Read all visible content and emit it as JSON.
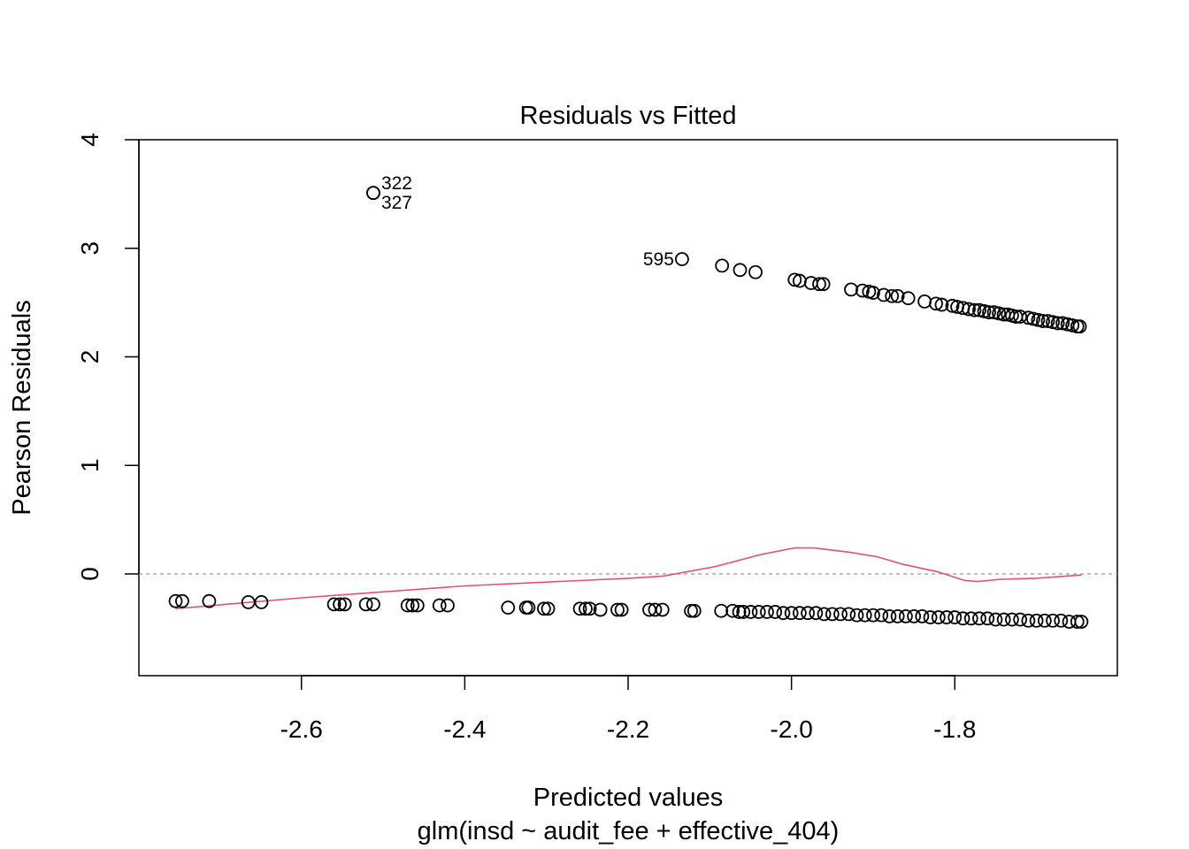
{
  "chart_data": {
    "type": "scatter",
    "title": "Residuals vs Fitted",
    "xlabel": "Predicted values",
    "sub": "glm(insd ~ audit_fee + effective_404)",
    "ylabel": "Pearson Residuals",
    "xlim": [
      -2.799,
      -1.601
    ],
    "ylim": [
      -0.937,
      4.0
    ],
    "xticks": [
      -2.6,
      -2.4,
      -2.2,
      -2.0,
      -1.8
    ],
    "xtick_labels": [
      "-2.6",
      "-2.4",
      "-2.2",
      "-2.0",
      "-1.8"
    ],
    "yticks": [
      0,
      1,
      2,
      3,
      4
    ],
    "ytick_labels": [
      "0",
      "1",
      "2",
      "3",
      "4"
    ],
    "reference_line_y": 0,
    "colors": {
      "points": "#000000",
      "smooth": "#DF536B",
      "refline": "#AAAAAA"
    },
    "points": [
      [
        -2.512,
        3.51
      ],
      [
        -2.512,
        3.51
      ],
      [
        -2.134,
        2.9
      ],
      [
        -2.085,
        2.84
      ],
      [
        -2.063,
        2.8
      ],
      [
        -2.044,
        2.78
      ],
      [
        -1.996,
        2.71
      ],
      [
        -1.99,
        2.7
      ],
      [
        -1.976,
        2.68
      ],
      [
        -1.966,
        2.67
      ],
      [
        -1.961,
        2.67
      ],
      [
        -1.927,
        2.62
      ],
      [
        -1.913,
        2.61
      ],
      [
        -1.905,
        2.6
      ],
      [
        -1.9,
        2.59
      ],
      [
        -1.887,
        2.57
      ],
      [
        -1.877,
        2.56
      ],
      [
        -1.87,
        2.56
      ],
      [
        -1.857,
        2.54
      ],
      [
        -1.837,
        2.51
      ],
      [
        -1.823,
        2.49
      ],
      [
        -1.816,
        2.48
      ],
      [
        -1.803,
        2.47
      ],
      [
        -1.797,
        2.46
      ],
      [
        -1.79,
        2.45
      ],
      [
        -1.783,
        2.44
      ],
      [
        -1.776,
        2.43
      ],
      [
        -1.77,
        2.43
      ],
      [
        -1.764,
        2.42
      ],
      [
        -1.758,
        2.41
      ],
      [
        -1.752,
        2.41
      ],
      [
        -1.746,
        2.4
      ],
      [
        -1.74,
        2.39
      ],
      [
        -1.735,
        2.39
      ],
      [
        -1.73,
        2.38
      ],
      [
        -1.725,
        2.37
      ],
      [
        -1.72,
        2.37
      ],
      [
        -1.71,
        2.36
      ],
      [
        -1.704,
        2.35
      ],
      [
        -1.698,
        2.34
      ],
      [
        -1.692,
        2.33
      ],
      [
        -1.686,
        2.33
      ],
      [
        -1.68,
        2.32
      ],
      [
        -1.674,
        2.31
      ],
      [
        -1.668,
        2.31
      ],
      [
        -1.662,
        2.3
      ],
      [
        -1.656,
        2.29
      ],
      [
        -1.65,
        2.28
      ],
      [
        -1.647,
        2.28
      ],
      [
        -2.754,
        -0.25
      ],
      [
        -2.746,
        -0.25
      ],
      [
        -2.713,
        -0.25
      ],
      [
        -2.665,
        -0.26
      ],
      [
        -2.649,
        -0.26
      ],
      [
        -2.56,
        -0.28
      ],
      [
        -2.553,
        -0.28
      ],
      [
        -2.547,
        -0.28
      ],
      [
        -2.521,
        -0.28
      ],
      [
        -2.512,
        -0.28
      ],
      [
        -2.47,
        -0.29
      ],
      [
        -2.464,
        -0.29
      ],
      [
        -2.458,
        -0.29
      ],
      [
        -2.431,
        -0.29
      ],
      [
        -2.421,
        -0.29
      ],
      [
        -2.347,
        -0.31
      ],
      [
        -2.325,
        -0.31
      ],
      [
        -2.322,
        -0.31
      ],
      [
        -2.303,
        -0.32
      ],
      [
        -2.298,
        -0.32
      ],
      [
        -2.259,
        -0.32
      ],
      [
        -2.252,
        -0.32
      ],
      [
        -2.247,
        -0.32
      ],
      [
        -2.234,
        -0.33
      ],
      [
        -2.213,
        -0.33
      ],
      [
        -2.208,
        -0.33
      ],
      [
        -2.174,
        -0.33
      ],
      [
        -2.167,
        -0.33
      ],
      [
        -2.158,
        -0.33
      ],
      [
        -2.123,
        -0.34
      ],
      [
        -2.119,
        -0.34
      ],
      [
        -2.086,
        -0.34
      ],
      [
        -2.072,
        -0.34
      ],
      [
        -2.064,
        -0.35
      ],
      [
        -2.059,
        -0.35
      ],
      [
        -2.05,
        -0.35
      ],
      [
        -2.04,
        -0.35
      ],
      [
        -2.03,
        -0.35
      ],
      [
        -2.02,
        -0.35
      ],
      [
        -2.01,
        -0.36
      ],
      [
        -2.0,
        -0.36
      ],
      [
        -1.99,
        -0.36
      ],
      [
        -1.98,
        -0.36
      ],
      [
        -1.97,
        -0.36
      ],
      [
        -1.96,
        -0.37
      ],
      [
        -1.95,
        -0.37
      ],
      [
        -1.94,
        -0.37
      ],
      [
        -1.93,
        -0.37
      ],
      [
        -1.92,
        -0.38
      ],
      [
        -1.91,
        -0.38
      ],
      [
        -1.9,
        -0.38
      ],
      [
        -1.89,
        -0.38
      ],
      [
        -1.88,
        -0.39
      ],
      [
        -1.87,
        -0.39
      ],
      [
        -1.86,
        -0.39
      ],
      [
        -1.85,
        -0.39
      ],
      [
        -1.84,
        -0.39
      ],
      [
        -1.83,
        -0.4
      ],
      [
        -1.82,
        -0.4
      ],
      [
        -1.81,
        -0.4
      ],
      [
        -1.8,
        -0.4
      ],
      [
        -1.79,
        -0.41
      ],
      [
        -1.78,
        -0.41
      ],
      [
        -1.77,
        -0.41
      ],
      [
        -1.76,
        -0.41
      ],
      [
        -1.75,
        -0.42
      ],
      [
        -1.74,
        -0.42
      ],
      [
        -1.73,
        -0.42
      ],
      [
        -1.72,
        -0.42
      ],
      [
        -1.71,
        -0.43
      ],
      [
        -1.7,
        -0.43
      ],
      [
        -1.69,
        -0.43
      ],
      [
        -1.68,
        -0.43
      ],
      [
        -1.67,
        -0.43
      ],
      [
        -1.66,
        -0.44
      ],
      [
        -1.65,
        -0.44
      ],
      [
        -1.645,
        -0.44
      ]
    ],
    "point_labels": [
      {
        "text": "322",
        "x": -2.512,
        "y": 3.51,
        "side": "right"
      },
      {
        "text": "327",
        "x": -2.512,
        "y": 3.51,
        "side": "right"
      },
      {
        "text": "595",
        "x": -2.134,
        "y": 2.9,
        "side": "left"
      }
    ],
    "smooth_line": [
      [
        -2.754,
        -0.32
      ],
      [
        -2.6,
        -0.22
      ],
      [
        -2.4,
        -0.11
      ],
      [
        -2.2,
        -0.04
      ],
      [
        -2.157,
        -0.02
      ],
      [
        -2.092,
        0.07
      ],
      [
        -2.037,
        0.18
      ],
      [
        -1.996,
        0.24
      ],
      [
        -1.972,
        0.24
      ],
      [
        -1.929,
        0.2
      ],
      [
        -1.896,
        0.16
      ],
      [
        -1.864,
        0.09
      ],
      [
        -1.821,
        0.02
      ],
      [
        -1.788,
        -0.06
      ],
      [
        -1.772,
        -0.07
      ],
      [
        -1.745,
        -0.05
      ],
      [
        -1.701,
        -0.04
      ],
      [
        -1.645,
        -0.01
      ]
    ]
  }
}
